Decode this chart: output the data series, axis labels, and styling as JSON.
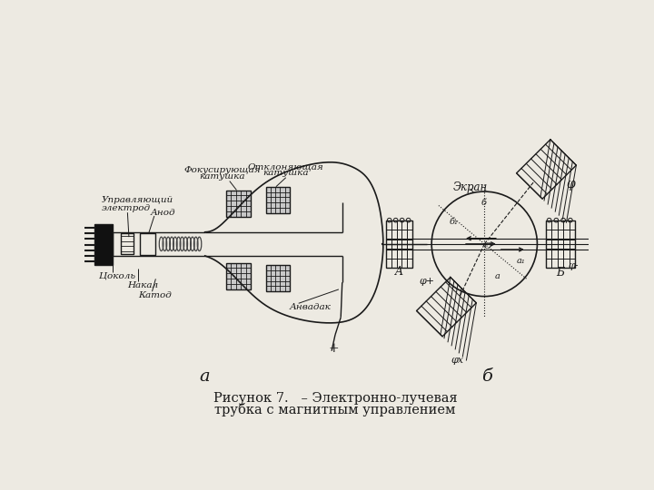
{
  "title_line1": "Рисунок 7.   – Электронно-лучевая",
  "title_line2": "трубка с магнитным управлением",
  "bg_color": "#edeae2",
  "label_tsokol": "Цоколь",
  "label_nakal": "Накал",
  "label_katod": "Катод",
  "label_uprelektr_1": "Управляющий",
  "label_uprelektr_2": "электрод",
  "label_anod": "Анод",
  "label_fokuskat_1": "Фокусирующая",
  "label_fokuskat_2": "катушка",
  "label_otkkat_1": "Отклоняющая",
  "label_otkkat_2": "катушка",
  "label_akvadak": "Анвадак",
  "label_ekran": "Экран",
  "label_a": "а",
  "label_b_italic": "б",
  "line_color": "#1a1a1a"
}
